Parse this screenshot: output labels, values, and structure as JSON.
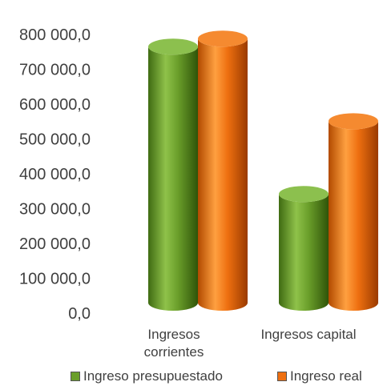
{
  "chart_data": {
    "type": "bar",
    "style": "3d-cylinder",
    "categories": [
      [
        "Ingresos",
        "corrientes"
      ],
      [
        "Ingresos capital"
      ]
    ],
    "series": [
      {
        "name": "Ingreso presupuestado",
        "color": "#6a9e2a",
        "values": [
          735000,
          312000
        ]
      },
      {
        "name": "Ingreso real",
        "color": "#ee6f10",
        "values": [
          758000,
          521000
        ]
      }
    ],
    "yticks": [
      "0,0",
      "100 000,0",
      "200 000,0",
      "300 000,0",
      "400 000,0",
      "500 000,0",
      "600 000,0",
      "700 000,0",
      "800 000,0"
    ],
    "ylim": [
      0,
      800000
    ],
    "grid": false,
    "legend_position": "bottom"
  },
  "legend": {
    "items": [
      {
        "label": "Ingreso presupuestado",
        "color": "#6a9e2a"
      },
      {
        "label": "Ingreso real",
        "color": "#ee6f10"
      }
    ]
  }
}
